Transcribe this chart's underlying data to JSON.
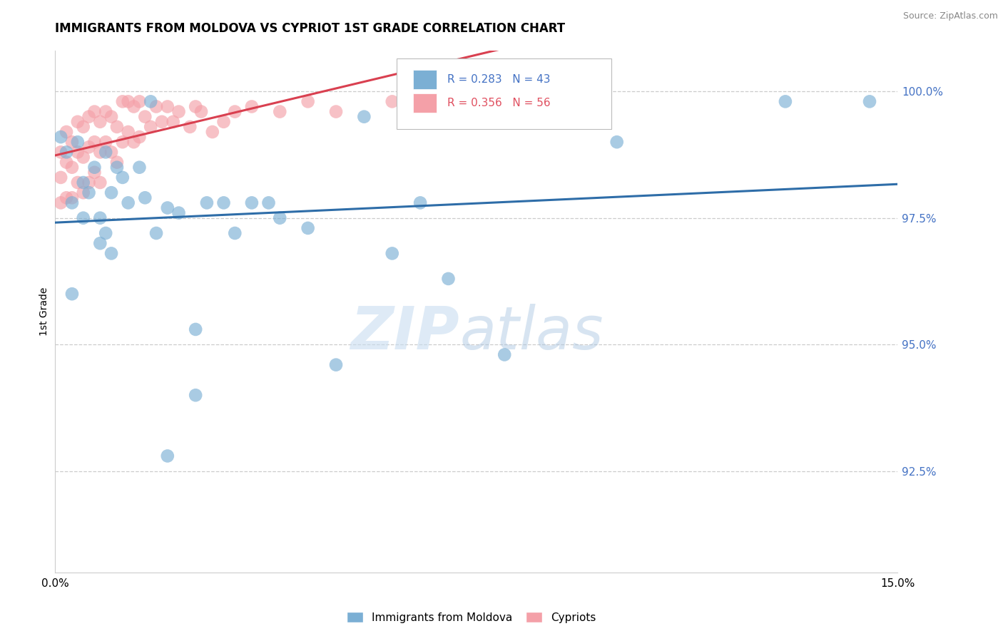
{
  "title": "IMMIGRANTS FROM MOLDOVA VS CYPRIOT 1ST GRADE CORRELATION CHART",
  "source_text": "Source: ZipAtlas.com",
  "ylabel": "1st Grade",
  "xmin": 0.0,
  "xmax": 0.15,
  "ymin": 0.905,
  "ymax": 1.008,
  "yticks": [
    0.925,
    0.95,
    0.975,
    1.0
  ],
  "ytick_labels": [
    "92.5%",
    "95.0%",
    "97.5%",
    "100.0%"
  ],
  "xtick_labels": [
    "0.0%",
    "15.0%"
  ],
  "legend_r_blue": "R = 0.283",
  "legend_n_blue": "N = 43",
  "legend_r_pink": "R = 0.356",
  "legend_n_pink": "N = 56",
  "legend_label_blue": "Immigrants from Moldova",
  "legend_label_pink": "Cypriots",
  "blue_color": "#7BAFD4",
  "pink_color": "#F4A0A8",
  "line_blue_color": "#2E6DA8",
  "line_pink_color": "#D94050",
  "blue_scatter_x": [
    0.001,
    0.002,
    0.003,
    0.004,
    0.005,
    0.005,
    0.006,
    0.007,
    0.008,
    0.008,
    0.009,
    0.009,
    0.01,
    0.01,
    0.011,
    0.012,
    0.013,
    0.015,
    0.016,
    0.017,
    0.018,
    0.02,
    0.022,
    0.025,
    0.027,
    0.03,
    0.032,
    0.035,
    0.038,
    0.04,
    0.045,
    0.05,
    0.055,
    0.06,
    0.065,
    0.07,
    0.08,
    0.1,
    0.13,
    0.145,
    0.003,
    0.025,
    0.02
  ],
  "blue_scatter_y": [
    0.991,
    0.988,
    0.978,
    0.99,
    0.982,
    0.975,
    0.98,
    0.985,
    0.975,
    0.97,
    0.988,
    0.972,
    0.98,
    0.968,
    0.985,
    0.983,
    0.978,
    0.985,
    0.979,
    0.998,
    0.972,
    0.977,
    0.976,
    0.953,
    0.978,
    0.978,
    0.972,
    0.978,
    0.978,
    0.975,
    0.973,
    0.946,
    0.995,
    0.968,
    0.978,
    0.963,
    0.948,
    0.99,
    0.998,
    0.998,
    0.96,
    0.94,
    0.928
  ],
  "pink_scatter_x": [
    0.001,
    0.001,
    0.001,
    0.002,
    0.002,
    0.002,
    0.003,
    0.003,
    0.003,
    0.004,
    0.004,
    0.004,
    0.005,
    0.005,
    0.005,
    0.006,
    0.006,
    0.006,
    0.007,
    0.007,
    0.007,
    0.008,
    0.008,
    0.008,
    0.009,
    0.009,
    0.01,
    0.01,
    0.011,
    0.011,
    0.012,
    0.012,
    0.013,
    0.013,
    0.014,
    0.014,
    0.015,
    0.015,
    0.016,
    0.017,
    0.018,
    0.019,
    0.02,
    0.021,
    0.022,
    0.024,
    0.025,
    0.026,
    0.028,
    0.03,
    0.032,
    0.035,
    0.04,
    0.045,
    0.05,
    0.06
  ],
  "pink_scatter_y": [
    0.988,
    0.983,
    0.978,
    0.992,
    0.986,
    0.979,
    0.99,
    0.985,
    0.979,
    0.994,
    0.988,
    0.982,
    0.993,
    0.987,
    0.98,
    0.995,
    0.989,
    0.982,
    0.996,
    0.99,
    0.984,
    0.994,
    0.988,
    0.982,
    0.996,
    0.99,
    0.995,
    0.988,
    0.993,
    0.986,
    0.998,
    0.99,
    0.998,
    0.992,
    0.997,
    0.99,
    0.998,
    0.991,
    0.995,
    0.993,
    0.997,
    0.994,
    0.997,
    0.994,
    0.996,
    0.993,
    0.997,
    0.996,
    0.992,
    0.994,
    0.996,
    0.997,
    0.996,
    0.998,
    0.996,
    0.998
  ]
}
